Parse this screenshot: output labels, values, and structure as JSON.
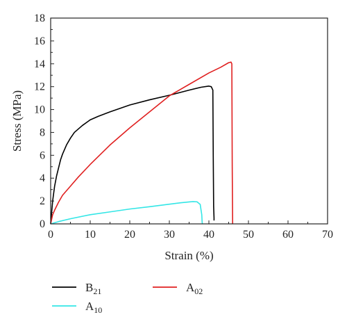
{
  "chart_data": {
    "type": "line",
    "xlabel": "Strain (%)",
    "ylabel": "Stress (MPa)",
    "xlim": [
      0,
      70
    ],
    "ylim": [
      0,
      18
    ],
    "xticks": [
      "0",
      "10",
      "20",
      "30",
      "40",
      "50",
      "60",
      "70"
    ],
    "yticks": [
      "0",
      "2",
      "4",
      "6",
      "8",
      "10",
      "12",
      "14",
      "16",
      "18"
    ],
    "grid": false,
    "legend_position": "bottom",
    "series": [
      {
        "name": "B21",
        "label_main": "B",
        "label_sub": "21",
        "color": "#000000",
        "x": [
          0,
          0.5,
          1,
          1.5,
          2,
          2.5,
          3,
          4,
          5,
          6,
          8,
          10,
          12,
          15,
          20,
          25,
          30,
          35,
          38,
          40,
          40.6,
          41,
          41.1,
          41.2,
          41.3,
          41.3
        ],
        "y": [
          0,
          2.0,
          3.3,
          4.2,
          4.9,
          5.6,
          6.1,
          6.9,
          7.5,
          8.0,
          8.6,
          9.1,
          9.4,
          9.8,
          10.4,
          10.85,
          11.25,
          11.7,
          11.95,
          12.05,
          12.0,
          11.7,
          6.0,
          1.5,
          0.5,
          0.3
        ]
      },
      {
        "name": "A10",
        "label_main": "A",
        "label_sub": "10",
        "color": "#33e6e6",
        "x": [
          0,
          1,
          2,
          5,
          10,
          15,
          20,
          25,
          30,
          33,
          35,
          36,
          37,
          37.8,
          38.2,
          38.3,
          38.4
        ],
        "y": [
          0,
          0.1,
          0.2,
          0.45,
          0.8,
          1.05,
          1.3,
          1.5,
          1.72,
          1.85,
          1.92,
          1.95,
          1.93,
          1.7,
          0.8,
          0.1,
          0.0
        ]
      },
      {
        "name": "A02",
        "label_main": "A",
        "label_sub": "02",
        "color": "#e02020",
        "x": [
          0,
          0.5,
          1,
          2,
          3,
          5,
          7,
          10,
          15,
          20,
          25,
          30,
          35,
          40,
          43,
          45,
          45.6,
          45.8,
          45.9,
          46
        ],
        "y": [
          0,
          0.8,
          1.2,
          1.9,
          2.5,
          3.3,
          4.1,
          5.2,
          6.9,
          8.4,
          9.8,
          11.2,
          12.2,
          13.2,
          13.7,
          14.1,
          14.15,
          14.0,
          5.0,
          0.0
        ]
      }
    ]
  }
}
